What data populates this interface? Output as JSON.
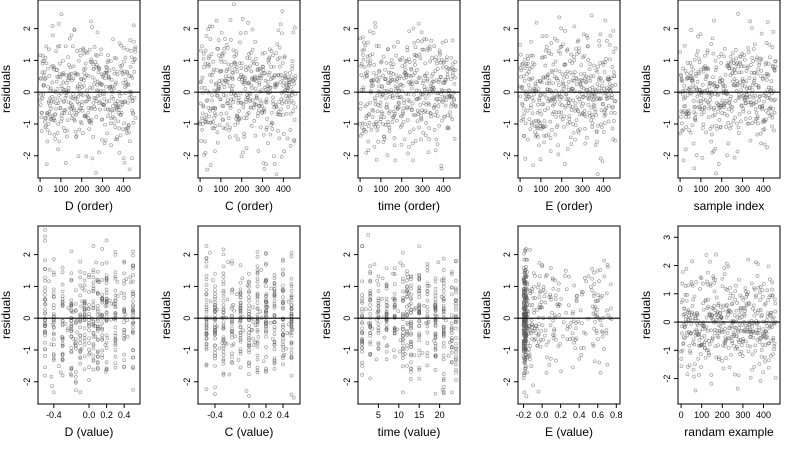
{
  "colors": {
    "points": "#555555",
    "axis": "#000000",
    "background": "#ffffff"
  },
  "chart_data": [
    {
      "id": "d-order",
      "type": "scatter",
      "xlabel": "D (order)",
      "ylabel": "residuals",
      "xlim": [
        -10,
        480
      ],
      "ylim": [
        -2.7,
        2.9
      ],
      "xticks": [
        0,
        100,
        200,
        300,
        400
      ],
      "xtick_labels": [
        "0",
        "100",
        "200",
        "300",
        "400"
      ],
      "yticks": [
        -2,
        -1,
        0,
        1,
        2
      ],
      "ytick_labels": [
        "-2",
        "-1",
        "0",
        "1",
        "2"
      ],
      "reference_line_y": 0,
      "pattern": "order",
      "n_points": 460,
      "seed": 11
    },
    {
      "id": "c-order",
      "type": "scatter",
      "xlabel": "C (order)",
      "ylabel": "residuals",
      "xlim": [
        -10,
        480
      ],
      "ylim": [
        -2.7,
        2.9
      ],
      "xticks": [
        0,
        100,
        200,
        300,
        400
      ],
      "xtick_labels": [
        "0",
        "100",
        "200",
        "300",
        "400"
      ],
      "yticks": [
        -2,
        -1,
        0,
        1,
        2
      ],
      "ytick_labels": [
        "-2",
        "-1",
        "0",
        "1",
        "2"
      ],
      "reference_line_y": 0,
      "pattern": "order",
      "n_points": 460,
      "seed": 23
    },
    {
      "id": "time-order",
      "type": "scatter",
      "xlabel": "time (order)",
      "ylabel": "residuals",
      "xlim": [
        -10,
        480
      ],
      "ylim": [
        -2.7,
        2.9
      ],
      "xticks": [
        0,
        100,
        200,
        300,
        400
      ],
      "xtick_labels": [
        "0",
        "100",
        "200",
        "300",
        "400"
      ],
      "yticks": [
        -2,
        -1,
        0,
        1,
        2
      ],
      "ytick_labels": [
        "-2",
        "-1",
        "0",
        "1",
        "2"
      ],
      "reference_line_y": 0,
      "pattern": "order",
      "n_points": 460,
      "seed": 37
    },
    {
      "id": "e-order",
      "type": "scatter",
      "xlabel": "E (order)",
      "ylabel": "residuals",
      "xlim": [
        -10,
        480
      ],
      "ylim": [
        -2.7,
        2.9
      ],
      "xticks": [
        0,
        100,
        200,
        300,
        400
      ],
      "xtick_labels": [
        "0",
        "100",
        "200",
        "300",
        "400"
      ],
      "yticks": [
        -2,
        -1,
        0,
        1,
        2
      ],
      "ytick_labels": [
        "-2",
        "-1",
        "0",
        "1",
        "2"
      ],
      "reference_line_y": 0,
      "pattern": "order",
      "n_points": 460,
      "seed": 41
    },
    {
      "id": "sample-index",
      "type": "scatter",
      "xlabel": "sample index",
      "ylabel": "residuals",
      "xlim": [
        -10,
        480
      ],
      "ylim": [
        -2.7,
        2.9
      ],
      "xticks": [
        0,
        100,
        200,
        300,
        400
      ],
      "xtick_labels": [
        "0",
        "100",
        "200",
        "300",
        "400"
      ],
      "yticks": [
        -2,
        -1,
        0,
        1,
        2
      ],
      "ytick_labels": [
        "-2",
        "-1",
        "0",
        "1",
        "2"
      ],
      "reference_line_y": 0,
      "pattern": "order",
      "n_points": 460,
      "seed": 53
    },
    {
      "id": "d-value",
      "type": "scatter",
      "xlabel": "D (value)",
      "ylabel": "residuals",
      "xlim": [
        -0.58,
        0.58
      ],
      "ylim": [
        -2.7,
        2.9
      ],
      "xticks": [
        -0.4,
        0.0,
        0.2,
        0.4
      ],
      "xtick_labels": [
        "-0.4",
        "0.0",
        "0.2",
        "0.4"
      ],
      "yticks": [
        -2,
        -1,
        0,
        1,
        2
      ],
      "ytick_labels": [
        "-2",
        "-1",
        "0",
        "1",
        "2"
      ],
      "reference_line_y": 0,
      "pattern": "columns",
      "x_columns": [
        -0.5,
        -0.4,
        -0.3,
        -0.2,
        -0.15,
        -0.1,
        -0.05,
        0.0,
        0.05,
        0.1,
        0.15,
        0.2,
        0.3,
        0.4,
        0.5
      ],
      "n_points": 460,
      "seed": 67
    },
    {
      "id": "c-value",
      "type": "scatter",
      "xlabel": "C (value)",
      "ylabel": "residuals",
      "xlim": [
        -0.6,
        0.6
      ],
      "ylim": [
        -2.7,
        2.9
      ],
      "xticks": [
        -0.4,
        0.0,
        0.2,
        0.4
      ],
      "xtick_labels": [
        "-0.4",
        "0.0",
        "0.2",
        "0.4"
      ],
      "yticks": [
        -2,
        -1,
        0,
        1,
        2
      ],
      "ytick_labels": [
        "-2",
        "-1",
        "0",
        "1",
        "2"
      ],
      "reference_line_y": 0,
      "pattern": "columns",
      "x_columns": [
        -0.5,
        -0.4,
        -0.3,
        -0.2,
        -0.1,
        0.0,
        0.1,
        0.2,
        0.3,
        0.4,
        0.5
      ],
      "n_points": 460,
      "seed": 71
    },
    {
      "id": "time-value",
      "type": "scatter",
      "xlabel": "time (value)",
      "ylabel": "residuals",
      "xlim": [
        0,
        25
      ],
      "ylim": [
        -2.7,
        2.9
      ],
      "xticks": [
        5,
        10,
        15,
        20
      ],
      "xtick_labels": [
        "5",
        "10",
        "15",
        "20"
      ],
      "yticks": [
        -2,
        -1,
        0,
        1,
        2
      ],
      "ytick_labels": [
        "-2",
        "-1",
        "0",
        "1",
        "2"
      ],
      "reference_line_y": 0,
      "pattern": "columns",
      "x_columns": [
        1,
        3,
        5,
        7,
        9,
        11,
        12,
        13,
        15,
        17,
        19,
        21,
        23,
        24
      ],
      "n_points": 460,
      "seed": 83
    },
    {
      "id": "e-value",
      "type": "scatter",
      "xlabel": "E (value)",
      "ylabel": "residuals",
      "xlim": [
        -0.26,
        0.84
      ],
      "ylim": [
        -2.7,
        2.9
      ],
      "xticks": [
        -0.2,
        0.0,
        0.2,
        0.4,
        0.6,
        0.8
      ],
      "xtick_labels": [
        "-0.2",
        "0.0",
        "0.2",
        "0.4",
        "0.6",
        "0.8"
      ],
      "yticks": [
        -2,
        -1,
        0,
        1,
        2
      ],
      "ytick_labels": [
        "-2",
        "-1",
        "0",
        "1",
        "2"
      ],
      "reference_line_y": 0,
      "pattern": "skewed",
      "n_points": 460,
      "seed": 97
    },
    {
      "id": "random-example",
      "type": "scatter",
      "xlabel": "randam example",
      "ylabel": "residuals",
      "xlim": [
        -15,
        480
      ],
      "ylim": [
        -2.9,
        3.4
      ],
      "xticks": [
        0,
        100,
        200,
        300,
        400
      ],
      "xtick_labels": [
        "0",
        "100",
        "200",
        "300",
        "400"
      ],
      "yticks": [
        -2,
        -1,
        0,
        1,
        2,
        3
      ],
      "ytick_labels": [
        "-2",
        "-1",
        "0",
        "1",
        "2",
        "3"
      ],
      "reference_line_y": 0,
      "pattern": "order",
      "n_points": 460,
      "seed": 103
    }
  ]
}
